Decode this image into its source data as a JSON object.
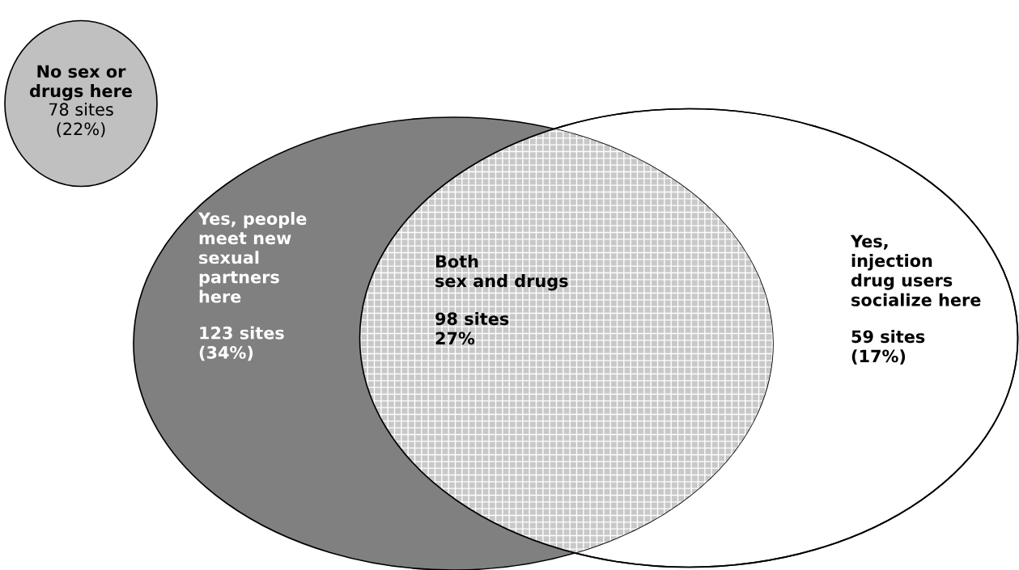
{
  "chart_data": {
    "type": "other",
    "categories": [
      "No sex or\ndrugs here",
      "Yes, people\nmeet new\nsexual\npartners\nhere",
      "Both\nsex and drugs",
      "Yes,\ninjection\ndrug users\nsocialize here"
    ],
    "values": [
      78,
      123,
      98,
      59
    ],
    "value_labels": [
      "78 sites\n(22%)",
      "123 sites\n(34%)",
      "98 sites\n27%",
      "59 sites\n(17%)"
    ],
    "colors": [
      "#c0c0c0",
      "#808080",
      "#c8c8c8",
      "#ffffff"
    ]
  }
}
